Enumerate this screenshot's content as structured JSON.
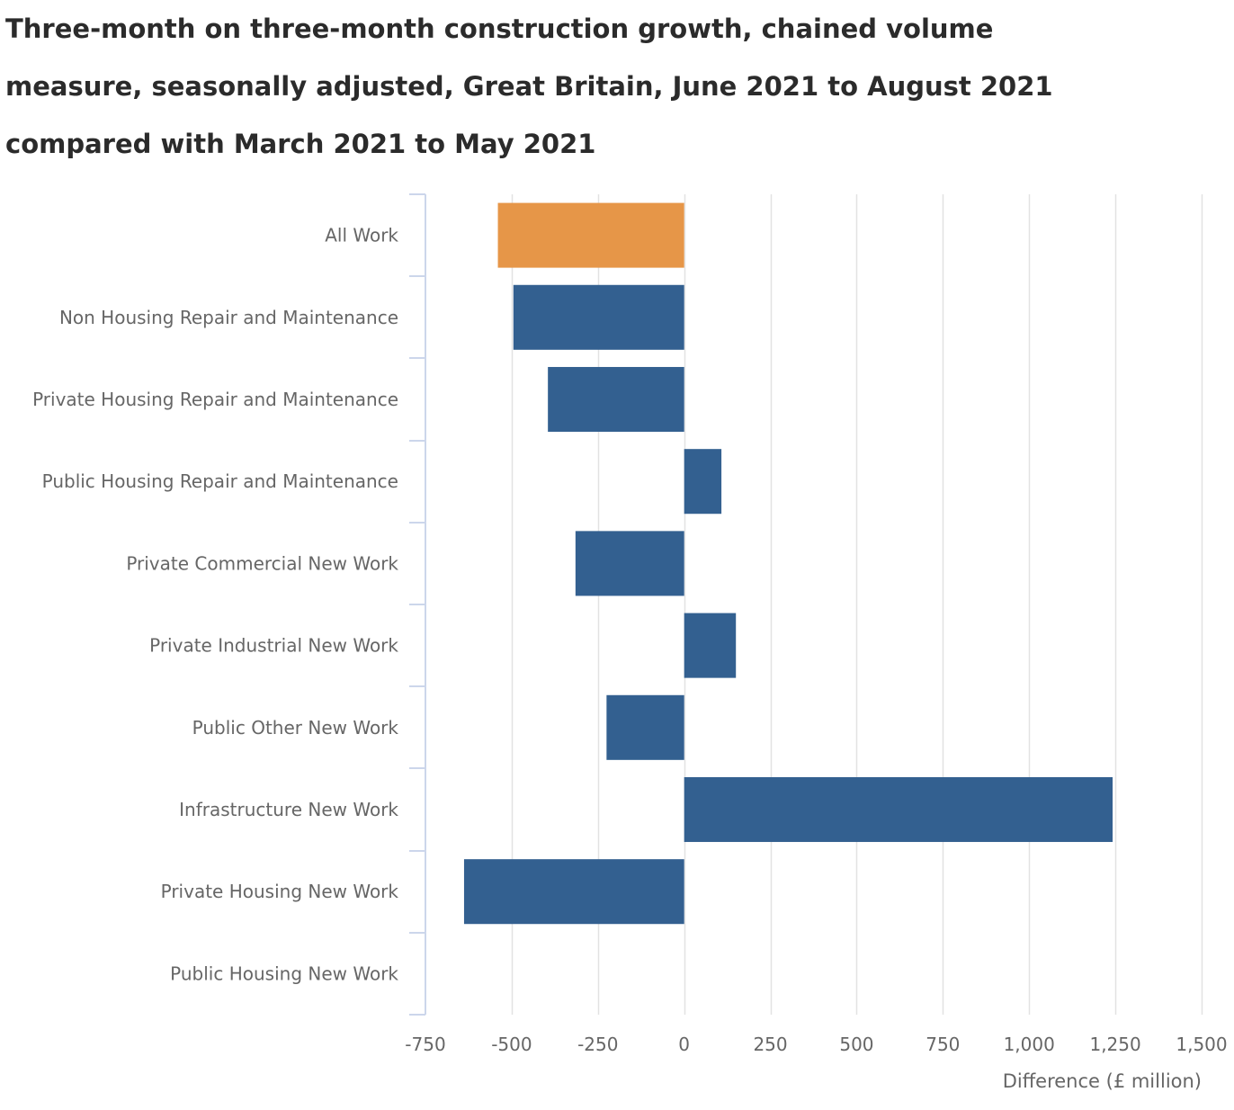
{
  "chart_data": {
    "type": "bar",
    "orientation": "horizontal",
    "title": "Three-month on three-month construction growth, chained volume measure, seasonally adjusted, Great Britain, June 2021 to August 2021 compared with March 2021 to May 2021",
    "xlabel": "Difference (£ million)",
    "ylabel": "",
    "xlim": [
      -750,
      1500
    ],
    "xticks": [
      -750,
      -500,
      -250,
      0,
      250,
      500,
      750,
      1000,
      1250,
      1500
    ],
    "xtick_labels": [
      "-750",
      "-500",
      "-250",
      "0",
      "250",
      "500",
      "750",
      "1,000",
      "1,250",
      "1,500"
    ],
    "grid": "vertical",
    "legend": "none",
    "categories": [
      "All Work",
      "Non Housing Repair and Maintenance",
      "Private Housing Repair and Maintenance",
      "Public Housing Repair and Maintenance",
      "Private Commercial New Work",
      "Private Industrial New Work",
      "Public Other New Work",
      "Infrastructure New Work",
      "Private Housing New Work",
      "Public Housing New Work"
    ],
    "values": [
      -540,
      -495,
      -395,
      108,
      -315,
      150,
      -225,
      1242,
      -638,
      0
    ],
    "colors": {
      "highlight": "#E69648",
      "bar": "#336090",
      "grid": "#e2e2e2",
      "axis": "#ccd6eb"
    },
    "highlight_index": 0
  }
}
